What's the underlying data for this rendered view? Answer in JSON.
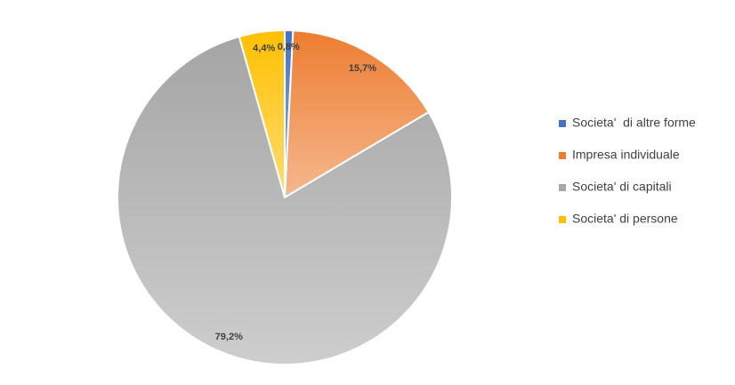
{
  "chart_data": {
    "type": "pie",
    "categories": [
      "Societa'  di altre forme",
      "Impresa individuale",
      "Societa' di capitali",
      "Societa' di persone"
    ],
    "values": [
      0.8,
      15.7,
      79.2,
      4.4
    ],
    "value_labels": [
      "0,8%",
      "15,7%",
      "79,2%",
      "4,4%"
    ],
    "colors": [
      "#4472c4",
      "#ed7d31",
      "#a5a5a5",
      "#ffc000"
    ],
    "legend": "right"
  }
}
